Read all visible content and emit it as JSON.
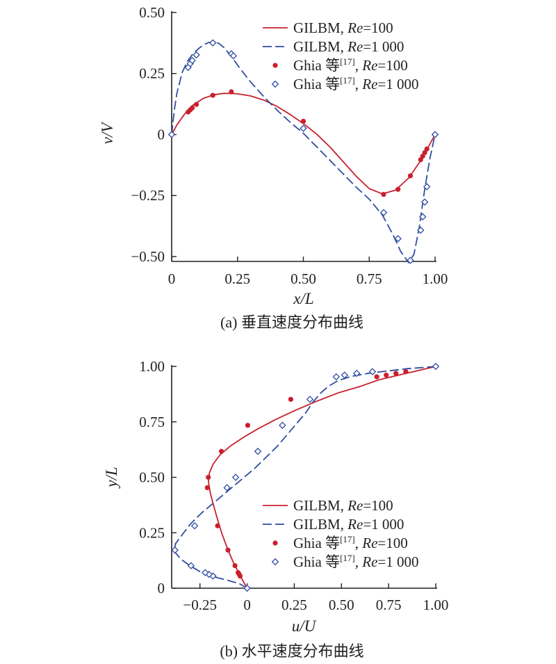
{
  "chart_data": [
    {
      "type": "line",
      "caption": "(a) 垂直速度分布曲线",
      "xlabel": "x/L",
      "ylabel": "v/V",
      "xlim": [
        0,
        1.0
      ],
      "ylim": [
        -0.52,
        0.5
      ],
      "xticks": [
        0,
        0.25,
        0.5,
        0.75,
        1.0
      ],
      "xtick_labels": [
        "0",
        "0.25",
        "0.50",
        "0.75",
        "1.00"
      ],
      "yticks": [
        0.5,
        0.25,
        0,
        -0.25,
        -0.5
      ],
      "ytick_labels": [
        "0.50",
        "0.25",
        "0",
        "−0.25",
        "−0.50"
      ],
      "legend_position": "top-right",
      "legend": [
        {
          "pre": "GILBM, ",
          "it": "Re",
          "post": "=100"
        },
        {
          "pre": "GILBM, ",
          "it": "Re",
          "post": "=1 000"
        },
        {
          "pre": "Ghia 等",
          "sup": "[17]",
          "mid": ", ",
          "it": "Re",
          "post": "=100"
        },
        {
          "pre": "Ghia 等",
          "sup": "[17]",
          "mid": ", ",
          "it": "Re",
          "post": "=1 000"
        }
      ],
      "series": [
        {
          "name": "GILBM, Re=100",
          "style": "solid",
          "color": "#c8202e",
          "x": [
            0,
            0.02,
            0.05,
            0.08,
            0.12,
            0.16,
            0.2,
            0.25,
            0.3,
            0.35,
            0.4,
            0.45,
            0.5,
            0.55,
            0.6,
            0.65,
            0.7,
            0.75,
            0.8,
            0.85,
            0.9,
            0.94,
            0.97,
            1.0
          ],
          "y": [
            0,
            0.04,
            0.085,
            0.12,
            0.148,
            0.163,
            0.169,
            0.167,
            0.158,
            0.141,
            0.115,
            0.082,
            0.045,
            0.002,
            -0.05,
            -0.11,
            -0.17,
            -0.222,
            -0.243,
            -0.228,
            -0.178,
            -0.115,
            -0.06,
            0
          ]
        },
        {
          "name": "GILBM, Re=1 000",
          "style": "dashed",
          "color": "#2e4da0",
          "x": [
            0,
            0.01,
            0.02,
            0.04,
            0.06,
            0.08,
            0.1,
            0.12,
            0.14,
            0.16,
            0.18,
            0.2,
            0.23,
            0.26,
            0.3,
            0.35,
            0.4,
            0.45,
            0.5,
            0.55,
            0.6,
            0.65,
            0.7,
            0.75,
            0.8,
            0.84,
            0.87,
            0.9,
            0.92,
            0.94,
            0.96,
            0.98,
            1.0
          ],
          "y": [
            0,
            0.1,
            0.17,
            0.255,
            0.3,
            0.33,
            0.35,
            0.367,
            0.377,
            0.38,
            0.373,
            0.355,
            0.315,
            0.27,
            0.215,
            0.155,
            0.1,
            0.05,
            0.005,
            -0.05,
            -0.105,
            -0.16,
            -0.215,
            -0.265,
            -0.33,
            -0.41,
            -0.48,
            -0.525,
            -0.49,
            -0.38,
            -0.23,
            -0.1,
            0
          ]
        },
        {
          "name": "Ghia 等, Re=100",
          "style": "dots",
          "color": "#c8202e",
          "x": [
            0,
            0.0625,
            0.0703,
            0.0781,
            0.0938,
            0.1563,
            0.2266,
            0.5,
            0.8047,
            0.8594,
            0.9063,
            0.9453,
            0.9531,
            0.9609,
            0.9688,
            1.0
          ],
          "y": [
            0,
            0.0923,
            0.1009,
            0.1089,
            0.1232,
            0.1608,
            0.1751,
            0.0545,
            -0.2453,
            -0.2245,
            -0.1691,
            -0.1031,
            -0.0886,
            -0.0739,
            -0.0591,
            0
          ]
        },
        {
          "name": "Ghia 等, Re=1 000",
          "style": "diamonds",
          "color": "#2e4da0",
          "x": [
            0,
            0.0625,
            0.0703,
            0.0781,
            0.0938,
            0.1563,
            0.2266,
            0.2344,
            0.5,
            0.8047,
            0.8594,
            0.9063,
            0.9453,
            0.9531,
            0.9609,
            0.9688,
            1.0
          ],
          "y": [
            0,
            0.2749,
            0.2901,
            0.3035,
            0.3262,
            0.3756,
            0.3308,
            0.3224,
            0.0253,
            -0.3197,
            -0.4266,
            -0.5155,
            -0.3919,
            -0.3371,
            -0.2767,
            -0.2139,
            0
          ]
        }
      ]
    },
    {
      "type": "line",
      "caption": "(b) 水平速度分布曲线",
      "xlabel": "u/U",
      "ylabel": "y/L",
      "xlim": [
        -0.4,
        1.0
      ],
      "ylim": [
        0,
        1.0
      ],
      "xticks": [
        -0.25,
        0,
        0.25,
        0.5,
        0.75,
        1.0
      ],
      "xtick_labels": [
        "−0.25",
        "0",
        "0.25",
        "0.50",
        "0.75",
        "1.00"
      ],
      "yticks": [
        1.0,
        0.75,
        0.5,
        0.25,
        0
      ],
      "ytick_labels": [
        "1.00",
        "0.75",
        "0.50",
        "0.25",
        "0"
      ],
      "legend_position": "bottom-right",
      "legend": [
        {
          "pre": "GILBM, ",
          "it": "Re",
          "post": "=100"
        },
        {
          "pre": "GILBM, ",
          "it": "Re",
          "post": "=1 000"
        },
        {
          "pre": "Ghia 等",
          "sup": "[17]",
          "mid": ", ",
          "it": "Re",
          "post": "=100"
        },
        {
          "pre": "Ghia 等",
          "sup": "[17]",
          "mid": ", ",
          "it": "Re",
          "post": "=1 000"
        }
      ],
      "series": [
        {
          "name": "GILBM, Re=100",
          "style": "solid",
          "color": "#c8202e",
          "u": [
            0,
            -0.02,
            -0.045,
            -0.075,
            -0.105,
            -0.135,
            -0.16,
            -0.18,
            -0.195,
            -0.205,
            -0.2,
            -0.18,
            -0.145,
            -0.09,
            -0.02,
            0.06,
            0.15,
            0.25,
            0.36,
            0.48,
            0.6,
            0.7,
            0.8,
            0.9,
            1.0
          ],
          "y": [
            0,
            0.03,
            0.07,
            0.12,
            0.18,
            0.25,
            0.32,
            0.38,
            0.43,
            0.48,
            0.52,
            0.56,
            0.6,
            0.64,
            0.68,
            0.72,
            0.76,
            0.8,
            0.84,
            0.88,
            0.91,
            0.94,
            0.96,
            0.98,
            1.0
          ]
        },
        {
          "name": "GILBM, Re=1 000",
          "style": "dashed",
          "color": "#2e4da0",
          "u": [
            0,
            -0.04,
            -0.1,
            -0.17,
            -0.24,
            -0.3,
            -0.35,
            -0.385,
            -0.38,
            -0.345,
            -0.3,
            -0.24,
            -0.17,
            -0.1,
            -0.03,
            0.04,
            0.1,
            0.16,
            0.21,
            0.26,
            0.31,
            0.35,
            0.39,
            0.43,
            0.48,
            0.55,
            0.65,
            0.75,
            0.85,
            0.93,
            1.0
          ],
          "y": [
            0,
            0.02,
            0.035,
            0.05,
            0.07,
            0.1,
            0.13,
            0.165,
            0.2,
            0.24,
            0.29,
            0.34,
            0.39,
            0.44,
            0.49,
            0.54,
            0.59,
            0.64,
            0.69,
            0.74,
            0.79,
            0.84,
            0.88,
            0.91,
            0.935,
            0.955,
            0.97,
            0.98,
            0.99,
            0.995,
            1.0
          ]
        },
        {
          "name": "Ghia 等, Re=100",
          "style": "dots",
          "color": "#c8202e",
          "u": [
            0,
            -0.0372,
            -0.0419,
            -0.0477,
            -0.0643,
            -0.1015,
            -0.1566,
            -0.2109,
            -0.2058,
            -0.1364,
            0.0033,
            0.2315,
            0.6872,
            0.7372,
            0.7887,
            0.8412,
            1.0
          ],
          "y": [
            0,
            0.0547,
            0.0625,
            0.0703,
            0.1016,
            0.1719,
            0.2813,
            0.4531,
            0.5,
            0.6172,
            0.7344,
            0.8516,
            0.9531,
            0.9609,
            0.9688,
            0.9766,
            1.0
          ]
        },
        {
          "name": "Ghia 等, Re=1 000",
          "style": "diamonds",
          "color": "#2e4da0",
          "u": [
            0,
            -0.1811,
            -0.202,
            -0.2222,
            -0.2973,
            -0.3829,
            -0.2781,
            -0.1065,
            -0.0608,
            0.057,
            0.1872,
            0.333,
            0.4723,
            0.5169,
            0.5808,
            0.6644,
            1.0
          ],
          "y": [
            0,
            0.0547,
            0.0625,
            0.0703,
            0.1016,
            0.1719,
            0.2813,
            0.4531,
            0.5,
            0.6172,
            0.7344,
            0.8516,
            0.9531,
            0.9609,
            0.9688,
            0.9766,
            1.0
          ]
        }
      ]
    }
  ]
}
